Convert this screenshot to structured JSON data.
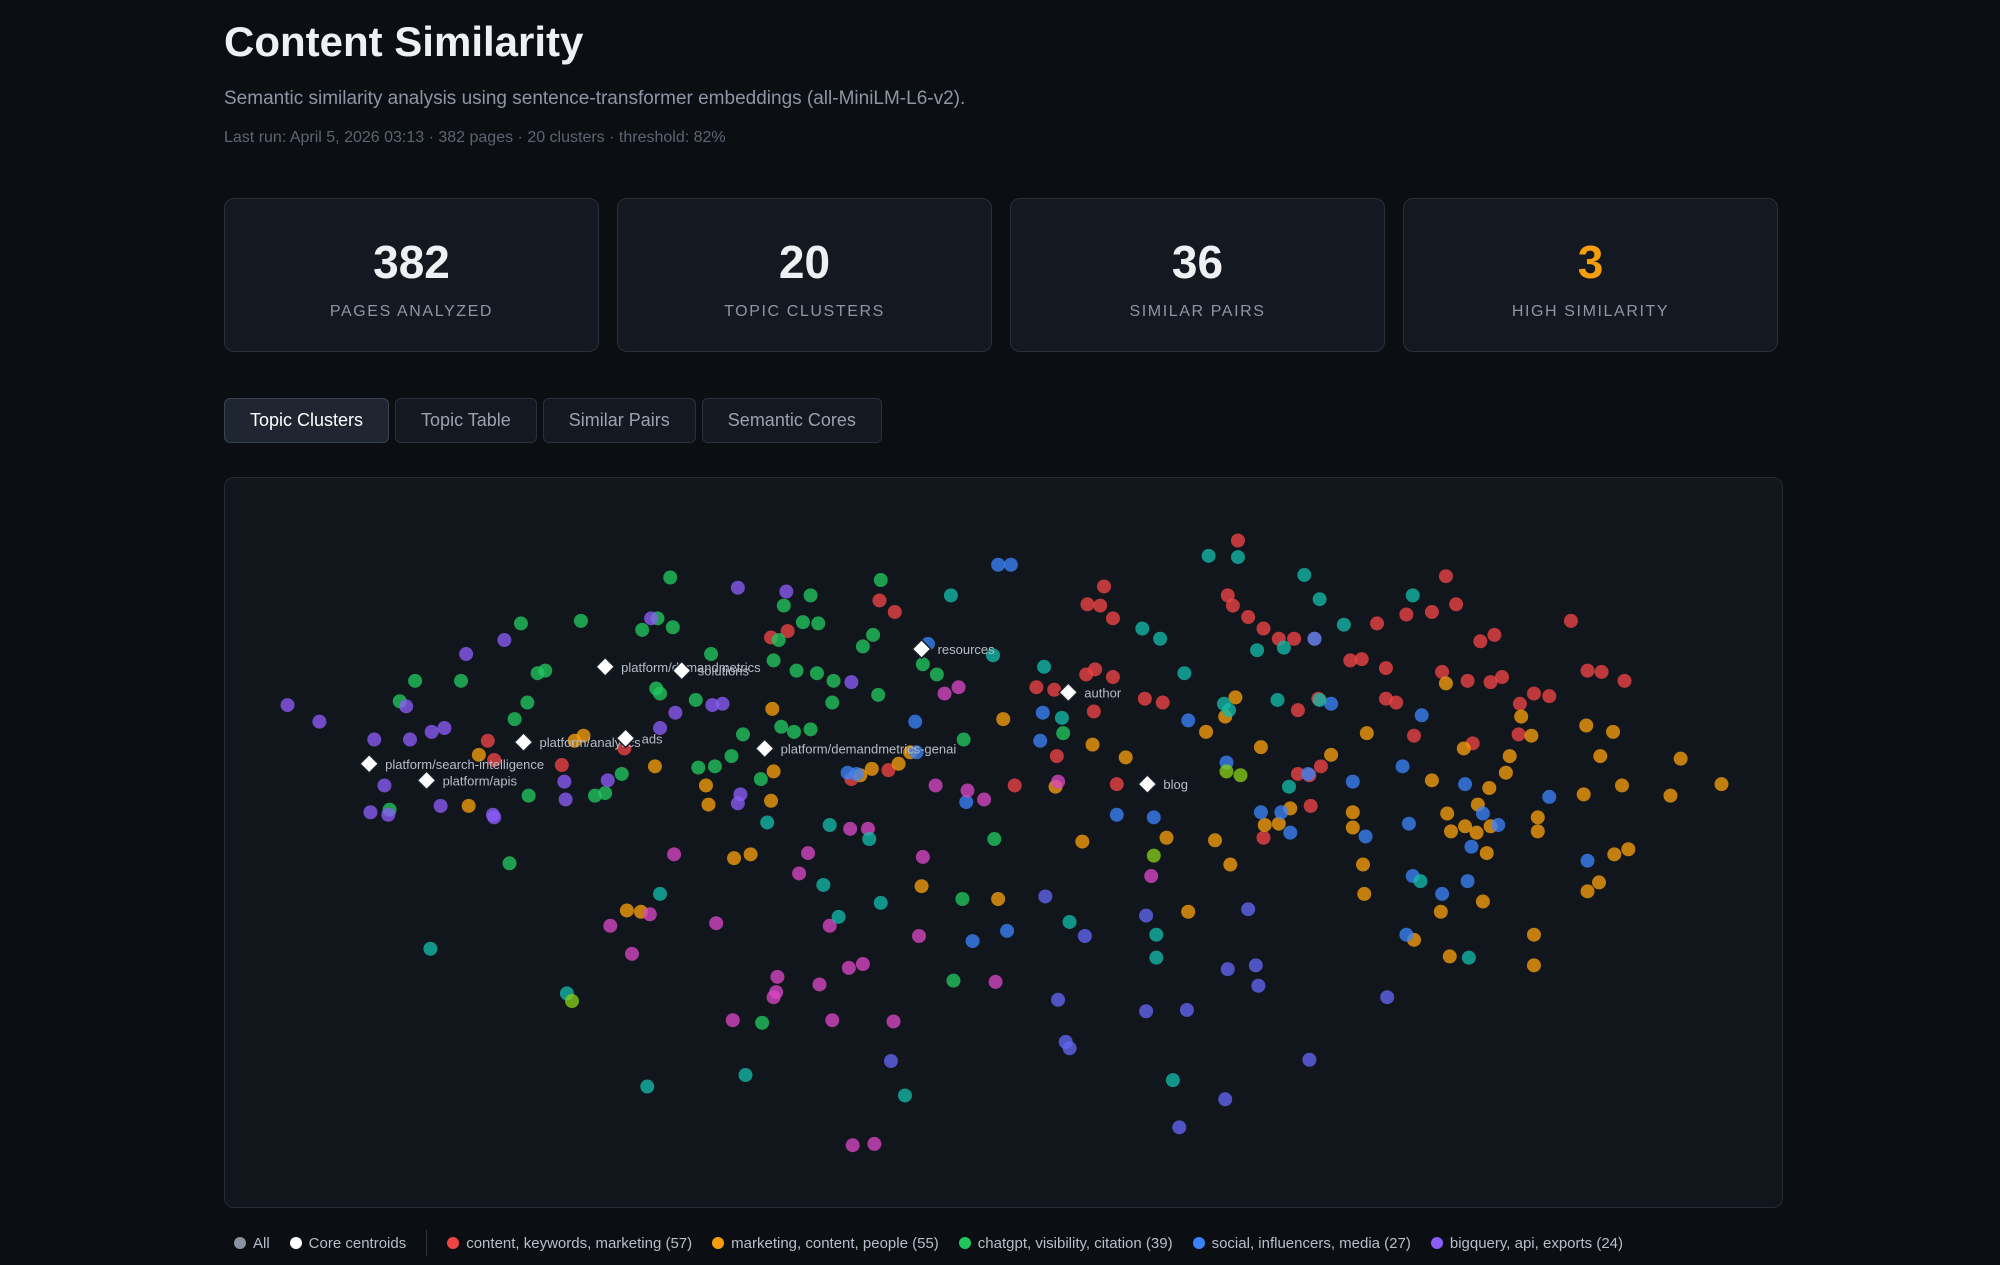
{
  "header": {
    "title": "Content Similarity",
    "subtitle": "Semantic similarity analysis using sentence-transformer embeddings (all-MiniLM-L6-v2).",
    "meta": "Last run: April 5, 2026 03:13 · 382 pages · 20 clusters · threshold: 82%"
  },
  "stats": [
    {
      "value": 382,
      "label": "PAGES ANALYZED"
    },
    {
      "value": 20,
      "label": "TOPIC CLUSTERS"
    },
    {
      "value": 36,
      "label": "SIMILAR PAIRS"
    },
    {
      "value": 3,
      "label": "HIGH SIMILARITY",
      "color": "#f59e0b"
    }
  ],
  "tabs": [
    {
      "label": "Topic Clusters",
      "active": true
    },
    {
      "label": "Topic Table",
      "active": false
    },
    {
      "label": "Similar Pairs",
      "active": false
    },
    {
      "label": "Semantic Cores",
      "active": false
    }
  ],
  "legend_filters": [
    "All",
    "Core centroids"
  ],
  "chart_data": {
    "type": "scatter",
    "xlim": [
      176,
      1398
    ],
    "ylim": [
      947,
      374
    ],
    "series": [
      {
        "name": "content, keywords, marketing (57)",
        "color": "#ef4444",
        "x": [
          970,
          962,
          966,
          978,
          990,
          1002,
          1014,
          1030,
          1058,
          1067,
          1079,
          1086,
          1102,
          1122,
          1133,
          1141,
          1130,
          1150,
          1168,
          1177,
          1160,
          1171,
          1231,
          1244,
          1255,
          1273,
          1214,
          1202,
          1191,
          1086,
          1094,
          1108,
          1154,
          1190,
          1017,
          1033,
          1035,
          1026,
          1017,
          1027,
          990,
          852,
          862,
          865,
          872,
          812,
          826,
          851,
          858,
          872,
          897,
          911,
          857,
          875,
          828,
          795,
          689,
          701,
          617,
          604,
          696,
          667,
          382,
          387,
          489,
          440
        ],
        "y": [
          423,
          466,
          474,
          483,
          492,
          500,
          500,
          500,
          517,
          516,
          488,
          523,
          481,
          479,
          451,
          473,
          526,
          533,
          534,
          530,
          502,
          497,
          486,
          525,
          526,
          533,
          545,
          543,
          551,
          547,
          550,
          576,
          582,
          575,
          556,
          547,
          600,
          607,
          606,
          631,
          656,
          473,
          474,
          459,
          484,
          538,
          540,
          528,
          524,
          530,
          547,
          550,
          557,
          614,
          592,
          615,
          470,
          479,
          494,
          499,
          603,
          610,
          580,
          595,
          586,
          599
        ]
      },
      {
        "name": "marketing, content, people (55)",
        "color": "#f59e0b",
        "x": [
          1122,
          1133,
          1147,
          1192,
          1200,
          1183,
          1180,
          1167,
          1158,
          1168,
          1157,
          1134,
          1137,
          1148,
          1165,
          1205,
          1205,
          1241,
          1243,
          1264,
          1254,
          1271,
          1309,
          1317,
          1349,
          1276,
          1265,
          1253,
          1244,
          1202,
          1202,
          1162,
          1129,
          1136,
          1108,
          1060,
          1060,
          1068,
          1069,
          1071,
          1043,
          988,
          1011,
          991,
          1002,
          952,
          964,
          931,
          914,
          848,
          882,
          856,
          786,
          827,
          782,
          722,
          713,
          704,
          674,
          683,
          605,
          606,
          604,
          588,
          575,
          555,
          553,
          513,
          491,
          502,
          367,
          375,
          450,
          457,
          960,
          968,
          945
        ],
        "y": [
          611,
          535,
          586,
          561,
          576,
          592,
          605,
          617,
          630,
          647,
          652,
          637,
          651,
          647,
          668,
          640,
          651,
          622,
          568,
          573,
          592,
          615,
          623,
          594,
          614,
          665,
          669,
          691,
          698,
          732,
          756,
          706,
          714,
          749,
          736,
          636,
          648,
          677,
          700,
          574,
          591,
          585,
          633,
          646,
          645,
          658,
          677,
          714,
          656,
          659,
          593,
          583,
          563,
          616,
          704,
          694,
          589,
          598,
          607,
          602,
          555,
          604,
          627,
          669,
          672,
          630,
          615,
          600,
          713,
          714,
          631,
          591,
          580,
          576,
          561,
          546,
          573
        ]
      },
      {
        "name": "chatgpt, visibility, citation (39)",
        "color": "#22c55e",
        "x": [
          525,
          455,
          408,
          503,
          527,
          515,
          614,
          635,
          629,
          641,
          690,
          684,
          676,
          610,
          606,
          624,
          640,
          653,
          652,
          688,
          723,
          734,
          557,
          545,
          517,
          514,
          582,
          573,
          560,
          547,
          612,
          622,
          635,
          596,
          487,
          474,
          466,
          413,
          403,
          421,
          427,
          361,
          325,
          313,
          414,
          399,
          305,
          779,
          754,
          747,
          597,
          755,
          833
        ],
        "y": [
          452,
          486,
          488,
          493,
          491,
          484,
          474,
          466,
          487,
          488,
          454,
          497,
          506,
          501,
          517,
          525,
          527,
          533,
          550,
          544,
          520,
          528,
          512,
          548,
          543,
          539,
          575,
          592,
          600,
          601,
          569,
          573,
          571,
          610,
          606,
          621,
          623,
          550,
          563,
          527,
          525,
          533,
          533,
          549,
          623,
          676,
          634,
          657,
          704,
          768,
          801,
          579,
          574
        ]
      },
      {
        "name": "social, influencers, media (27)",
        "color": "#3b82f6",
        "x": [
          782,
          792,
          727,
          717,
          718,
          664,
          671,
          757,
          817,
          815,
          931,
          961,
          988,
          1004,
          1011,
          1025,
          1030,
          1043,
          1060,
          1070,
          1099,
          1104,
          1107,
          1114,
          1148,
          1150,
          1153,
          1162,
          1174,
          1214,
          1244,
          1130,
          1102,
          875,
          904,
          762,
          789
        ],
        "y": [
          442,
          442,
          504,
          565,
          589,
          605,
          606,
          628,
          558,
          580,
          564,
          597,
          636,
          636,
          652,
          606,
          500,
          551,
          612,
          655,
          600,
          645,
          686,
          560,
          614,
          690,
          663,
          637,
          646,
          624,
          674,
          700,
          732,
          638,
          640,
          737,
          729
        ]
      },
      {
        "name": "bigquery, api, exports (24)",
        "color": "#8b5cf6",
        "x": [
          225,
          250,
          293,
          321,
          338,
          348,
          365,
          395,
          318,
          301,
          290,
          304,
          345,
          386,
          387,
          529,
          517,
          566,
          578,
          616,
          667,
          510,
          578,
          580,
          443,
          442,
          476,
          558
        ],
        "y": [
          552,
          565,
          579,
          579,
          573,
          570,
          512,
          501,
          553,
          615,
          636,
          638,
          631,
          638,
          640,
          558,
          570,
          551,
          460,
          463,
          534,
          484,
          629,
          622,
          626,
          612,
          611,
          552
        ]
      },
      {
        "color": "#d946c4",
        "x": [
          478,
          495,
          528,
          509,
          561,
          574,
          609,
          608,
          606,
          626,
          633,
          652,
          650,
          642,
          665,
          676,
          700,
          720,
          723,
          780,
          740,
          751,
          733,
          758,
          771,
          666,
          680,
          668,
          685,
          902,
          829
        ],
        "y": [
          725,
          747,
          669,
          716,
          723,
          799,
          765,
          777,
          781,
          684,
          668,
          799,
          725,
          771,
          758,
          755,
          800,
          733,
          671,
          769,
          543,
          538,
          615,
          619,
          626,
          649,
          649,
          897,
          896,
          686,
          612
        ]
      },
      {
        "color": "#14b8a6",
        "x": [
          947,
          970,
          1022,
          1034,
          1053,
          1107,
          895,
          909,
          928,
          985,
          1006,
          1001,
          1034,
          959,
          963,
          1010,
          745,
          778,
          818,
          832,
          650,
          681,
          690,
          657,
          645,
          517,
          584,
          507,
          709,
          919,
          906,
          906,
          838,
          337,
          444,
          601,
          1151,
          1113
        ],
        "y": [
          435,
          436,
          450,
          469,
          489,
          466,
          492,
          500,
          527,
          509,
          507,
          548,
          548,
          551,
          556,
          616,
          466,
          513,
          522,
          562,
          646,
          657,
          707,
          718,
          693,
          700,
          842,
          851,
          858,
          846,
          732,
          750,
          722,
          743,
          778,
          644,
          750,
          690
        ]
      },
      {
        "color": "#6366f1",
        "x": [
          698,
          829,
          835,
          838,
          850,
          819,
          898,
          898,
          930,
          962,
          960,
          924,
          986,
          984,
          978,
          1026,
          1087
        ],
        "y": [
          831,
          783,
          816,
          821,
          733,
          702,
          717,
          792,
          791,
          759,
          861,
          883,
          772,
          756,
          712,
          830,
          781
        ]
      },
      {
        "color": "#84cc16",
        "x": [
          448,
          904,
          972,
          961
        ],
        "y": [
          784,
          670,
          607,
          604
        ]
      }
    ],
    "centroids": {
      "labels": [
        "platform/demandmetrics",
        "solutions",
        "platform/analytics",
        "ads",
        "platform/demandmetrics-genai",
        "platform/search-intelligence",
        "platform/apis",
        "resources",
        "author",
        "blog"
      ],
      "x": [
        474,
        534,
        410,
        490,
        599,
        289,
        334,
        722,
        837,
        899
      ],
      "y": [
        522,
        525,
        581,
        578,
        586,
        598,
        611,
        508,
        542,
        614
      ]
    }
  }
}
